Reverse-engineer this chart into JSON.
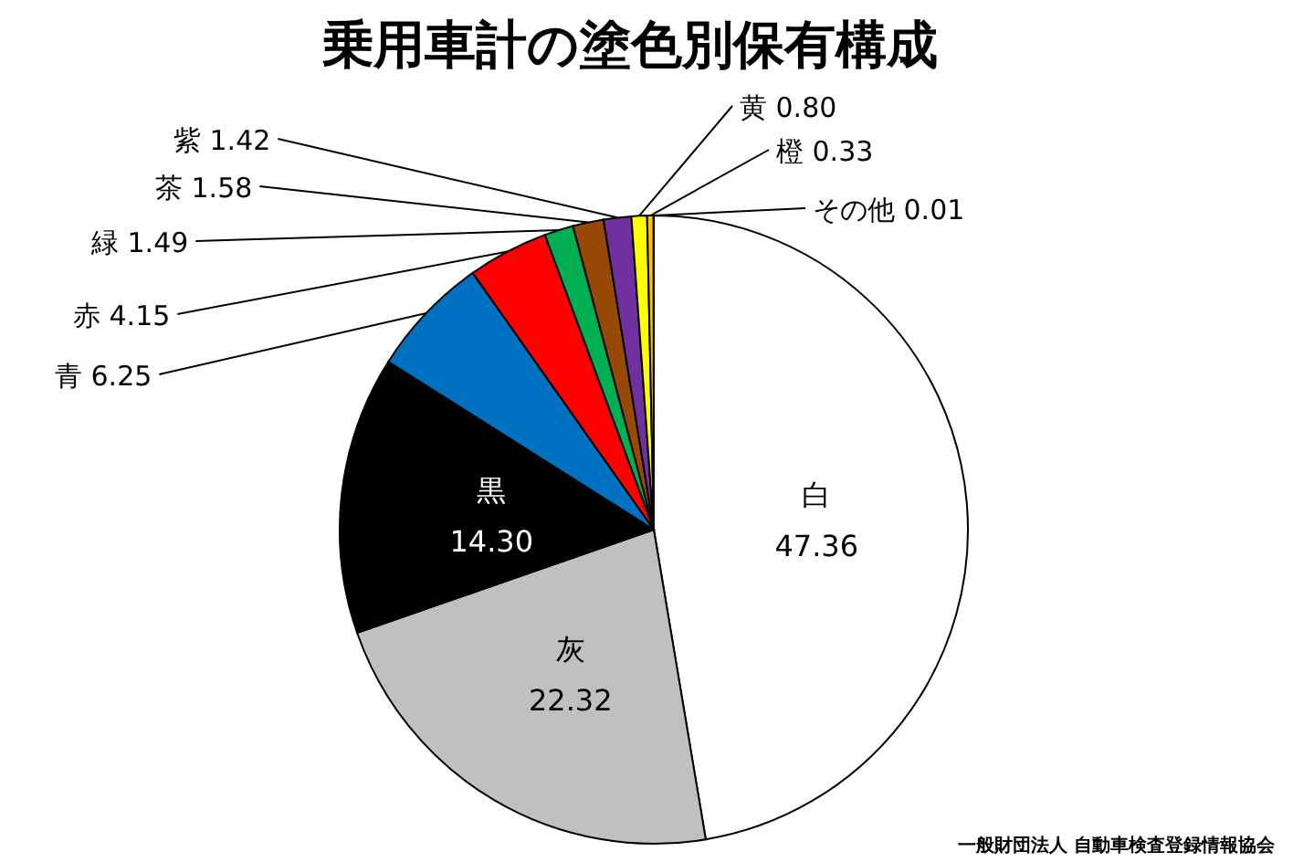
{
  "chart_data": {
    "type": "pie",
    "title": "乗用車計の塗色別保有構成",
    "categories": [
      "白",
      "灰",
      "黒",
      "青",
      "赤",
      "緑",
      "茶",
      "紫",
      "黄",
      "橙",
      "その他"
    ],
    "values": [
      47.36,
      22.32,
      14.3,
      6.25,
      4.15,
      1.49,
      1.58,
      1.42,
      0.8,
      0.33,
      0.01
    ],
    "value_labels": [
      "47.36",
      "22.32",
      "14.30",
      "6.25",
      "4.15",
      "1.49",
      "1.58",
      "1.42",
      "0.80",
      "0.33",
      "0.01"
    ],
    "colors": [
      "#ffffff",
      "#c0c0c0",
      "#000000",
      "#0070c0",
      "#ff0000",
      "#00b050",
      "#984807",
      "#7030a0",
      "#ffff00",
      "#ffc000",
      "#ffffff"
    ],
    "annotations": [
      "一般財団法人 自動車検査登録情報協会"
    ]
  }
}
